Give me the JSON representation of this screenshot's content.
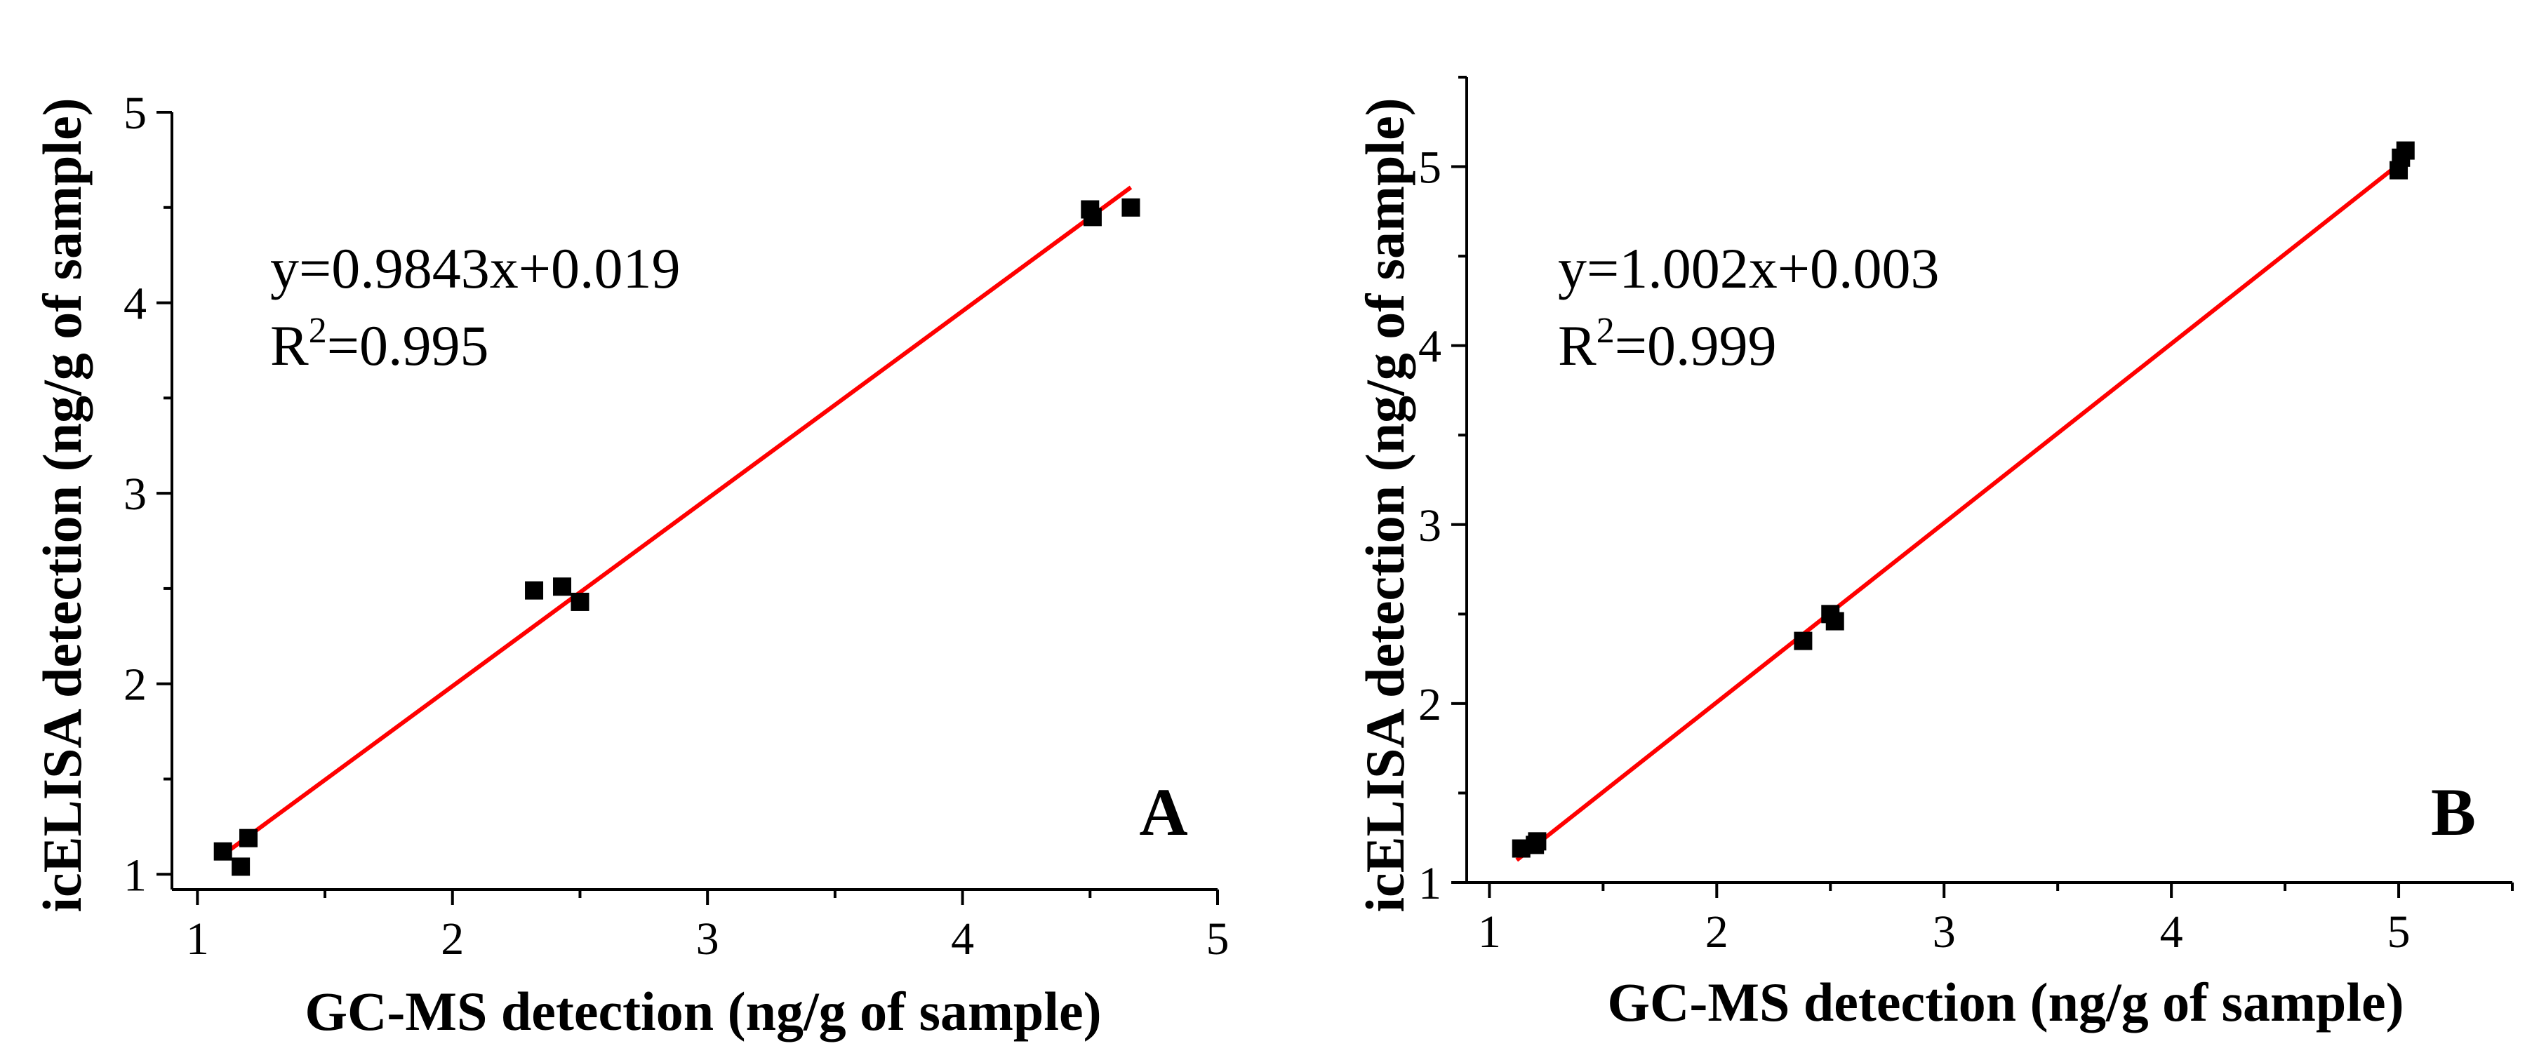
{
  "chart_data": [
    {
      "type": "scatter",
      "panel_label": "A",
      "xlabel": "GC-MS detection (ng/g of sample)",
      "ylabel": "icELISA detection (ng/g of sample)",
      "xlim": [
        0.9,
        5
      ],
      "ylim": [
        0.92,
        5
      ],
      "xticks": [
        1,
        2,
        3,
        4,
        5
      ],
      "yticks": [
        1,
        2,
        3,
        4,
        5
      ],
      "x": [
        1.1,
        1.17,
        1.2,
        2.32,
        2.43,
        2.5,
        4.5,
        4.51,
        4.66
      ],
      "y": [
        1.12,
        1.04,
        1.19,
        2.49,
        2.51,
        2.43,
        4.49,
        4.45,
        4.5
      ],
      "fit": {
        "slope": 0.9843,
        "intercept": 0.019,
        "x_range": [
          1.1,
          4.66
        ]
      },
      "equation": "y=0.9843x+0.019",
      "r2_prefix": "R",
      "r2_sup": "2",
      "r2_value": "=0.995"
    },
    {
      "type": "scatter",
      "panel_label": "B",
      "xlabel": "GC-MS detection (ng/g of sample)",
      "ylabel": "icELISA detection (ng/g of sample)",
      "xlim": [
        0.9,
        5.5
      ],
      "ylim": [
        1,
        5.5
      ],
      "xticks": [
        1,
        2,
        3,
        4,
        5
      ],
      "yticks": [
        1,
        2,
        3,
        4,
        5
      ],
      "x": [
        1.14,
        1.2,
        1.21,
        2.38,
        2.5,
        2.52,
        5.0,
        5.01,
        5.03
      ],
      "y": [
        1.19,
        1.21,
        1.23,
        2.35,
        2.5,
        2.46,
        4.98,
        5.05,
        5.09
      ],
      "fit": {
        "slope": 1.002,
        "intercept": 0.003,
        "x_range": [
          1.12,
          5.02
        ]
      },
      "equation": "y=1.002x+0.003",
      "r2_prefix": "R",
      "r2_sup": "2",
      "r2_value": "=0.999"
    }
  ]
}
